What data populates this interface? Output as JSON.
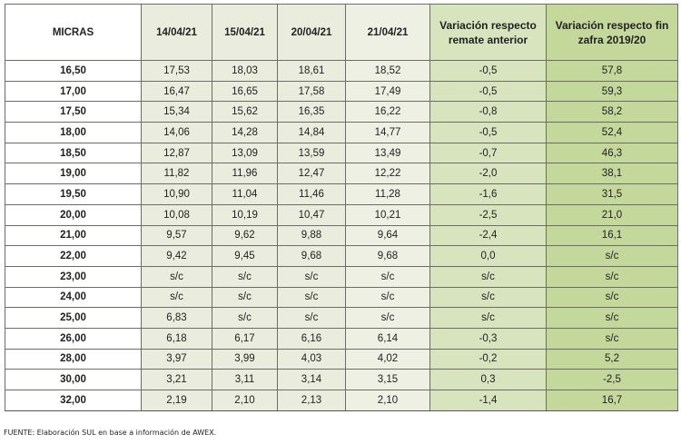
{
  "table": {
    "headers": {
      "micras": "MICRAS",
      "d1": "14/04/21",
      "d2": "15/04/21",
      "d3": "20/04/21",
      "d4": "21/04/21",
      "var_ant": "Variación respecto remate anterior",
      "var_fin": "Variación respecto fin zafra 2019/20"
    },
    "rows": [
      {
        "micras": "16,50",
        "d1": "17,53",
        "d2": "18,03",
        "d3": "18,61",
        "d4": "18,52",
        "var_ant": "-0,5",
        "var_fin": "57,8"
      },
      {
        "micras": "17,00",
        "d1": "16,47",
        "d2": "16,65",
        "d3": "17,58",
        "d4": "17,49",
        "var_ant": "-0,5",
        "var_fin": "59,3"
      },
      {
        "micras": "17,50",
        "d1": "15,34",
        "d2": "15,62",
        "d3": "16,35",
        "d4": "16,22",
        "var_ant": "-0,8",
        "var_fin": "58,2"
      },
      {
        "micras": "18,00",
        "d1": "14,06",
        "d2": "14,28",
        "d3": "14,84",
        "d4": "14,77",
        "var_ant": "-0,5",
        "var_fin": "52,4"
      },
      {
        "micras": "18,50",
        "d1": "12,87",
        "d2": "13,09",
        "d3": "13,59",
        "d4": "13,49",
        "var_ant": "-0,7",
        "var_fin": "46,3"
      },
      {
        "micras": "19,00",
        "d1": "11,82",
        "d2": "11,96",
        "d3": "12,47",
        "d4": "12,22",
        "var_ant": "-2,0",
        "var_fin": "38,1"
      },
      {
        "micras": "19,50",
        "d1": "10,90",
        "d2": "11,04",
        "d3": "11,46",
        "d4": "11,28",
        "var_ant": "-1,6",
        "var_fin": "31,5"
      },
      {
        "micras": "20,00",
        "d1": "10,08",
        "d2": "10,19",
        "d3": "10,47",
        "d4": "10,21",
        "var_ant": "-2,5",
        "var_fin": "21,0"
      },
      {
        "micras": "21,00",
        "d1": "9,57",
        "d2": "9,62",
        "d3": "9,88",
        "d4": "9,64",
        "var_ant": "-2,4",
        "var_fin": "16,1"
      },
      {
        "micras": "22,00",
        "d1": "9,42",
        "d2": "9,45",
        "d3": "9,68",
        "d4": "9,68",
        "var_ant": "0,0",
        "var_fin": "s/c"
      },
      {
        "micras": "23,00",
        "d1": "s/c",
        "d2": "s/c",
        "d3": "s/c",
        "d4": "s/c",
        "var_ant": "s/c",
        "var_fin": "s/c"
      },
      {
        "micras": "24,00",
        "d1": "s/c",
        "d2": "s/c",
        "d3": "s/c",
        "d4": "s/c",
        "var_ant": "s/c",
        "var_fin": "s/c"
      },
      {
        "micras": "25,00",
        "d1": "6,83",
        "d2": "s/c",
        "d3": "s/c",
        "d4": "s/c",
        "var_ant": "s/c",
        "var_fin": "s/c"
      },
      {
        "micras": "26,00",
        "d1": "6,18",
        "d2": "6,17",
        "d3": "6,16",
        "d4": "6,14",
        "var_ant": "-0,3",
        "var_fin": "s/c"
      },
      {
        "micras": "28,00",
        "d1": "3,97",
        "d2": "3,99",
        "d3": "4,03",
        "d4": "4,02",
        "var_ant": "-0,2",
        "var_fin": "5,2"
      },
      {
        "micras": "30,00",
        "d1": "3,21",
        "d2": "3,11",
        "d3": "3,14",
        "d4": "3,15",
        "var_ant": "0,3",
        "var_fin": "-2,5"
      },
      {
        "micras": "32,00",
        "d1": "2,19",
        "d2": "2,10",
        "d3": "2,13",
        "d4": "2,10",
        "var_ant": "-1,4",
        "var_fin": "16,7"
      }
    ]
  },
  "source_note": "FUENTE: Elaboración SUL en base a información de AWEX.",
  "colors": {
    "date_cols": "#eaeddd",
    "var_ant_col": "#d8e4bd",
    "var_fin_col": "#c4d89b",
    "border": "#6b6e66"
  }
}
